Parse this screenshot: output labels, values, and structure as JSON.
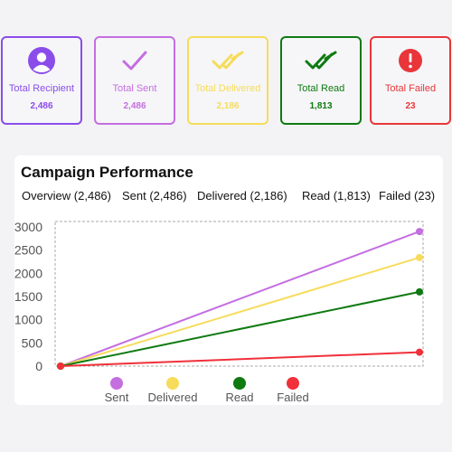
{
  "stats": [
    {
      "label": "Total Recipient",
      "value": "2,486",
      "color": "#8b4dea",
      "icon": "user-icon"
    },
    {
      "label": "Total Sent",
      "value": "2,486",
      "color": "#c46ee0",
      "icon": "check-icon"
    },
    {
      "label": "Total Delivered",
      "value": "2,186",
      "color": "#f5dc5a",
      "icon": "double-check-icon"
    },
    {
      "label": "Total Read",
      "value": "1,813",
      "color": "#0f7a12",
      "icon": "double-check-icon"
    },
    {
      "label": "Total Failed",
      "value": "23",
      "color": "#e8363a",
      "icon": "alert-icon"
    }
  ],
  "panel": {
    "title": "Campaign Performance",
    "tabs": [
      "Overview (2,486)",
      "Sent (2,486)",
      "Delivered (2,186)",
      "Read (1,813)",
      "Failed (23)"
    ]
  },
  "chart_data": {
    "type": "line",
    "x": [
      0,
      1
    ],
    "ylim": [
      0,
      3000
    ],
    "yticks": [
      "3000",
      "2500",
      "2000",
      "1500",
      "1000",
      "500",
      "0"
    ],
    "grid": false,
    "legend": "bottom",
    "series": [
      {
        "name": "Sent",
        "color": "#c46ee0",
        "values": [
          0,
          2900
        ]
      },
      {
        "name": "Delivered",
        "color": "#f7dc5c",
        "values": [
          0,
          2340
        ]
      },
      {
        "name": "Read",
        "color": "#0f7a12",
        "values": [
          0,
          1600
        ]
      },
      {
        "name": "Failed",
        "color": "#f0303a",
        "values": [
          0,
          300
        ]
      }
    ]
  }
}
